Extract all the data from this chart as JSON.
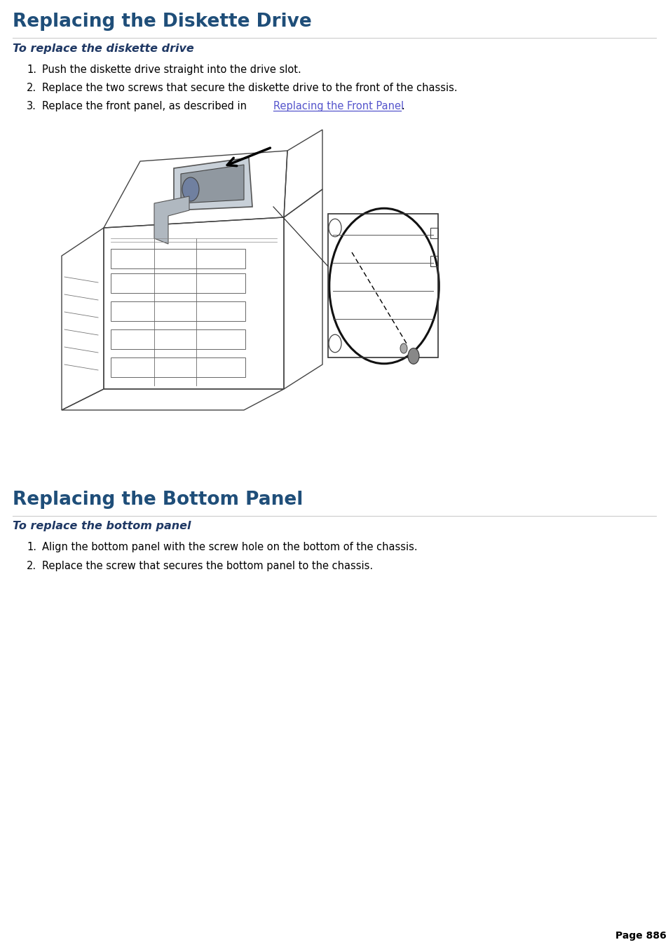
{
  "bg_color": "#ffffff",
  "title1": "Replacing the Diskette Drive",
  "title1_color": "#1f4e79",
  "subtitle1": "To replace the diskette drive",
  "subtitle1_color": "#1f3864",
  "item1_1": "Push the diskette drive straight into the drive slot.",
  "item1_2": "Replace the two screws that secure the diskette drive to the front of the chassis.",
  "item1_3_pre": "Replace the front panel, as described in ",
  "link_text": "Replacing the Front Panel",
  "link_color": "#5555cc",
  "item1_3_suf": ".",
  "title2": "Replacing the Bottom Panel",
  "title2_color": "#1f4e79",
  "subtitle2": "To replace the bottom panel",
  "subtitle2_color": "#1f3864",
  "item2_1": "Align the bottom panel with the screw hole on the bottom of the chassis.",
  "item2_2": "Replace the screw that secures the bottom panel to the chassis.",
  "page_text": "Page 886",
  "page_color": "#000000",
  "text_color": "#000000",
  "figsize": [
    9.54,
    13.51
  ]
}
